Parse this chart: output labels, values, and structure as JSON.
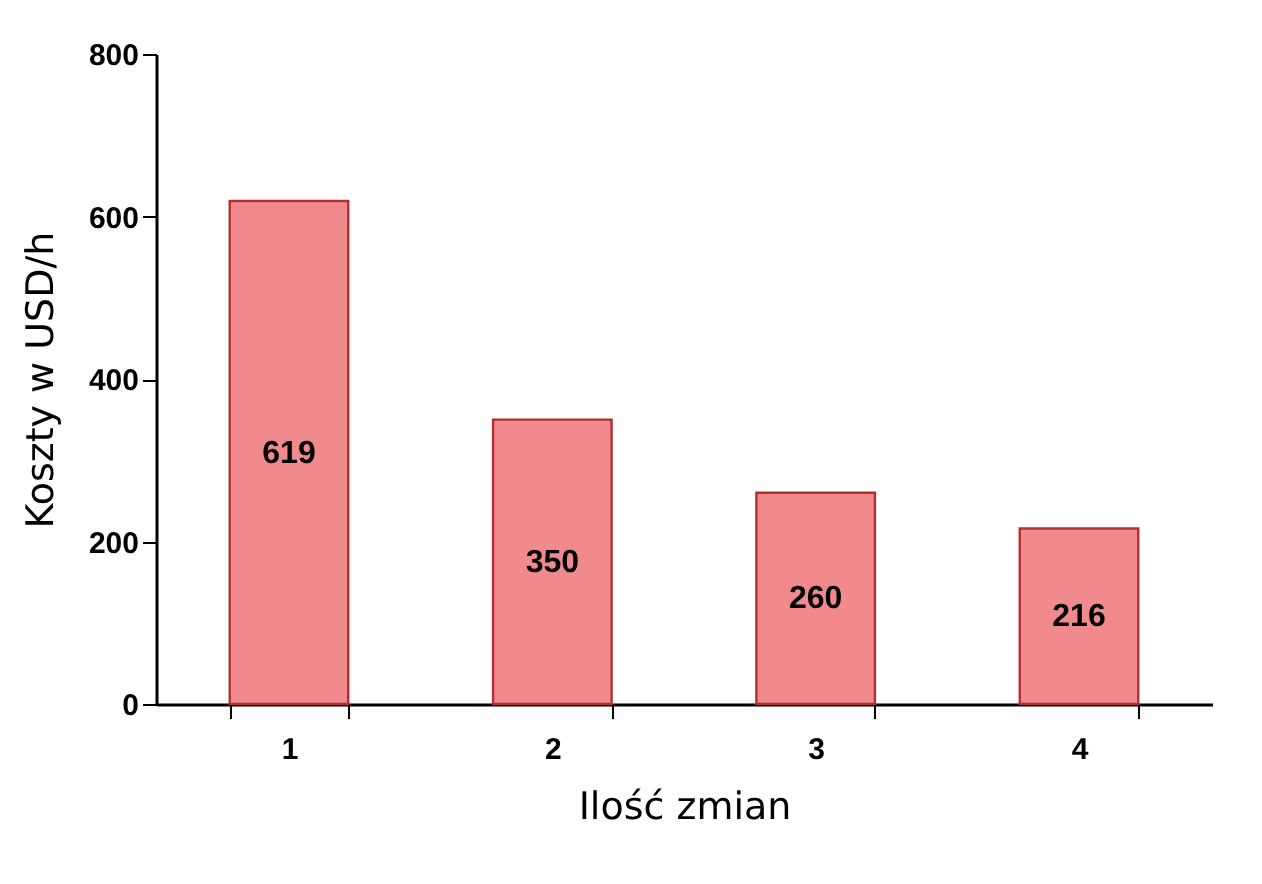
{
  "chart_data": {
    "type": "bar",
    "xlabel": "Ilość zmian",
    "ylabel": "Koszty w USD/h",
    "categories": [
      "1",
      "2",
      "3",
      "4"
    ],
    "values": [
      619,
      350,
      260,
      216
    ],
    "color": "#f08a8c",
    "ylim": [
      0,
      800
    ],
    "yticks": [
      0,
      200,
      400,
      600,
      800
    ],
    "data_labels": true
  }
}
